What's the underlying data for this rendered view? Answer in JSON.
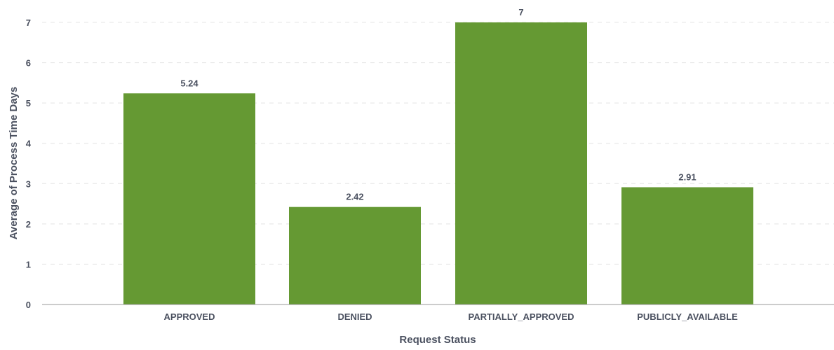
{
  "chart_data": {
    "type": "bar",
    "categories": [
      "APPROVED",
      "DENIED",
      "PARTIALLY_APPROVED",
      "PUBLICLY_AVAILABLE"
    ],
    "values": [
      5.24,
      2.42,
      7,
      2.91
    ],
    "value_labels": [
      "5.24",
      "2.42",
      "7",
      "2.91"
    ],
    "xlabel": "Request Status",
    "ylabel": "Average of Process Time Days",
    "ylim": [
      0,
      7
    ],
    "yticks": [
      0,
      1,
      2,
      3,
      4,
      5,
      6,
      7
    ],
    "grid": true,
    "legend": "none",
    "colors": {
      "bar": "#659933",
      "text": "#4b5160",
      "gridline": "#e4e4e4",
      "axis": "#9a9a9a"
    }
  }
}
